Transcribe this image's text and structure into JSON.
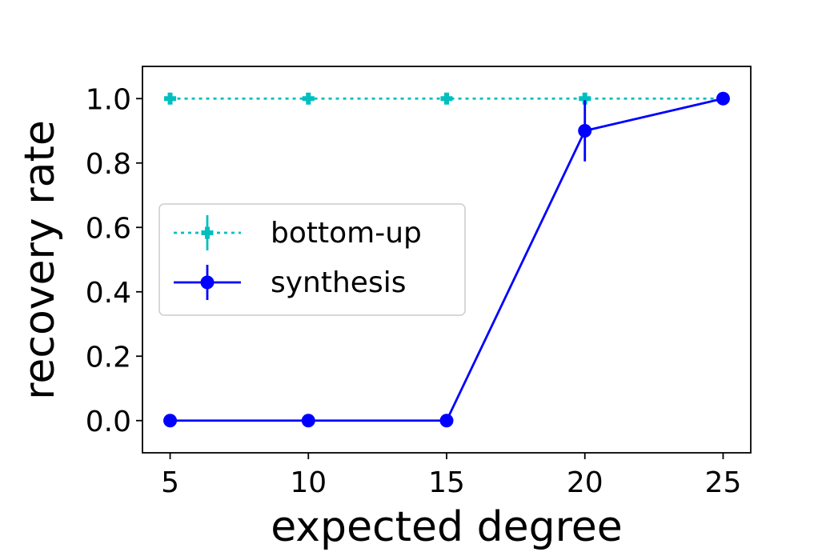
{
  "chart_data": {
    "type": "line",
    "title": "",
    "xlabel": "expected degree",
    "ylabel": "recovery rate",
    "x": [
      5,
      10,
      15,
      20,
      25
    ],
    "xticks": [
      "5",
      "10",
      "15",
      "20",
      "25"
    ],
    "yticks": [
      "0.0",
      "0.2",
      "0.4",
      "0.6",
      "0.8",
      "1.0"
    ],
    "xlim": [
      4,
      26
    ],
    "ylim": [
      -0.1,
      1.1
    ],
    "grid": false,
    "legend_position": "center-left",
    "series": [
      {
        "name": "bottom-up",
        "values": [
          1.0,
          1.0,
          1.0,
          1.0,
          1.0
        ],
        "errors": [
          0,
          0,
          0,
          0,
          0
        ],
        "color": "#00bfbf",
        "line_style": "dotted",
        "marker": "plus"
      },
      {
        "name": "synthesis",
        "values": [
          0.0,
          0.0,
          0.0,
          0.9,
          1.0
        ],
        "errors": [
          0,
          0,
          0,
          0.095,
          0
        ],
        "color": "#0000ff",
        "line_style": "solid",
        "marker": "circle"
      }
    ]
  }
}
